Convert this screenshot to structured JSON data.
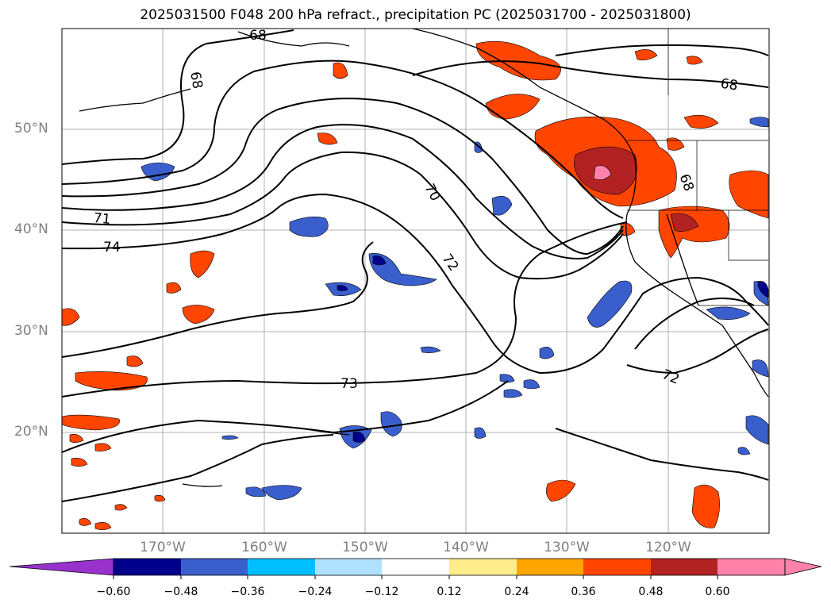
{
  "title": "2025031500 F048 200 hPa refract., precipitation PC (2025031700 - 2025031800)",
  "lat_labels": [
    "50°N",
    "40°N",
    "30°N",
    "20°N"
  ],
  "lon_labels": [
    "170°W",
    "160°W",
    "150°W",
    "140°W",
    "130°W",
    "120°W"
  ],
  "contour_labels": [
    "68",
    "68",
    "68",
    "68",
    "70",
    "71",
    "74",
    "72",
    "73",
    "72"
  ],
  "colorbar": {
    "ticks": [
      "−0.60",
      "−0.48",
      "−0.36",
      "−0.24",
      "−0.12",
      "0.12",
      "0.24",
      "0.36",
      "0.48",
      "0.60"
    ],
    "colors": [
      "#9932cc",
      "#00008b",
      "#3a5fcd",
      "#00bfff",
      "#b0e2ff",
      "#ffffff",
      "#ffec8b",
      "#ffa500",
      "#ff4500",
      "#b22222",
      "#ff82ab"
    ]
  }
}
